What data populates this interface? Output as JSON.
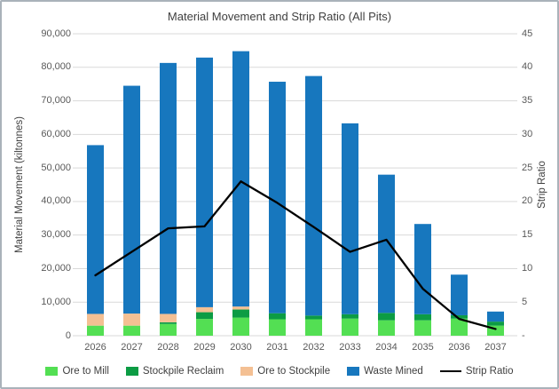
{
  "chart_data": {
    "type": "combo-stacked-bar-line",
    "title": "Material Movement and Strip Ratio (All Pits)",
    "categories": [
      "2026",
      "2027",
      "2028",
      "2029",
      "2030",
      "2031",
      "2032",
      "2033",
      "2034",
      "2035",
      "2036",
      "2037"
    ],
    "series": [
      {
        "name": "Ore to Mill",
        "type": "bar",
        "axis": "left",
        "color": "#53df53",
        "values": [
          3000,
          3000,
          3500,
          5000,
          5400,
          4900,
          4900,
          5100,
          4600,
          4600,
          5100,
          3000
        ]
      },
      {
        "name": "Stockpile Reclaim",
        "type": "bar",
        "axis": "left",
        "color": "#0c9c44",
        "values": [
          0,
          0,
          500,
          2000,
          2400,
          1800,
          1100,
          1300,
          2200,
          1800,
          1000,
          1200
        ]
      },
      {
        "name": "Ore to Stockpile",
        "type": "bar",
        "axis": "left",
        "color": "#f4c093",
        "values": [
          3500,
          3600,
          2500,
          1500,
          900,
          0,
          0,
          0,
          0,
          0,
          0,
          0
        ]
      },
      {
        "name": "Waste Mined",
        "type": "bar",
        "axis": "left",
        "color": "#1777be",
        "values": [
          50300,
          67900,
          74800,
          74400,
          76100,
          69000,
          71400,
          56900,
          41200,
          26900,
          12100,
          3000
        ]
      },
      {
        "name": "Strip Ratio",
        "type": "line",
        "axis": "right",
        "color": "#000000",
        "values": [
          9,
          12.5,
          16,
          16.3,
          23,
          19.8,
          16.2,
          12.5,
          14.3,
          7,
          2.5,
          1
        ]
      }
    ],
    "left_axis": {
      "label": "Material Movement (kiltonnes)",
      "min": 0,
      "max": 90000,
      "step": 10000,
      "tick_labels": [
        "0",
        "10,000",
        "20,000",
        "30,000",
        "40,000",
        "50,000",
        "60,000",
        "70,000",
        "80,000",
        "90,000"
      ]
    },
    "right_axis": {
      "label": "Strip Ratio",
      "min": 0,
      "max": 45,
      "step": 5,
      "tick_labels": [
        "-",
        "5",
        "10",
        "15",
        "20",
        "25",
        "30",
        "35",
        "40",
        "45"
      ]
    },
    "legend_position": "bottom",
    "grid": true,
    "colors": {
      "gridline": "#d9d9d9",
      "tick_text": "#595959",
      "title_text": "#404040"
    }
  }
}
